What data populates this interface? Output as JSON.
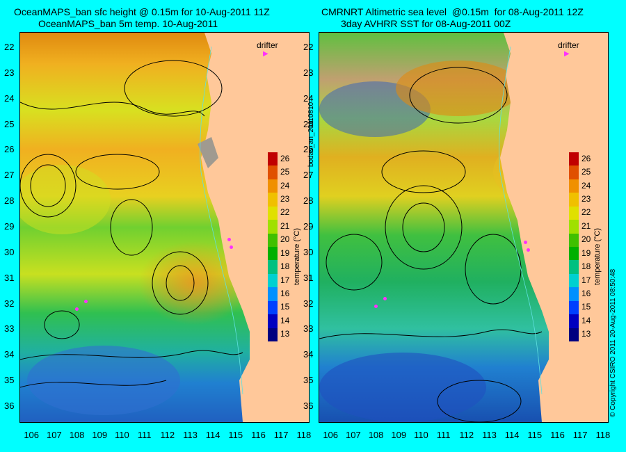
{
  "left": {
    "title1": "OceanMAPS_ban sfc height @ 0.15m for 10-Aug-2011 11Z",
    "title2": "OceanMAPS_ban 5m temp. 10-Aug-2011"
  },
  "right": {
    "title1": "CMRNRT Altimetric sea level  @0.15m  for 08-Aug-2011 12Z",
    "title2": "3day AVHRR SST for 08-Aug-2011 00Z"
  },
  "drifter_label": "drifter",
  "colorbar_label": "temperature (°C)",
  "side_left": "bodas_an_20110810",
  "side_right": "© Copyright CSIRO 2011   20-Aug-2011 08:50:48",
  "chart_data": [
    {
      "type": "heatmap",
      "title": "OceanMAPS_ban sfc height @ 0.15m for 10-Aug-2011 11Z",
      "subtitle": "OceanMAPS_ban 5m temp. 10-Aug-2011",
      "x_ticks": [
        "106",
        "107",
        "108",
        "109",
        "110",
        "111",
        "112",
        "113",
        "114",
        "115",
        "116",
        "117",
        "118"
      ],
      "y_ticks": [
        "22",
        "23",
        "24",
        "25",
        "26",
        "27",
        "28",
        "29",
        "30",
        "31",
        "32",
        "33",
        "34",
        "35",
        "36"
      ],
      "xlim": [
        105.5,
        118.2
      ],
      "ylim": [
        36.6,
        21.4
      ],
      "colorbar": {
        "label": "temperature (°C)",
        "ticks": [
          13,
          14,
          15,
          16,
          17,
          18,
          19,
          20,
          21,
          22,
          23,
          24,
          25,
          26
        ],
        "range": [
          12.5,
          26.5
        ]
      },
      "legend": [
        "drifter"
      ],
      "drifters": [
        {
          "x": 114.7,
          "y": 29.5
        },
        {
          "x": 114.8,
          "y": 29.8
        },
        {
          "x": 108.4,
          "y": 31.9
        },
        {
          "x": 108.0,
          "y": 32.2
        }
      ]
    },
    {
      "type": "heatmap",
      "title": "CMRNRT Altimetric sea level  @0.15m  for 08-Aug-2011 12Z",
      "subtitle": "3day AVHRR SST for 08-Aug-2011 00Z",
      "x_ticks": [
        "106",
        "107",
        "108",
        "109",
        "110",
        "111",
        "112",
        "113",
        "114",
        "115",
        "116",
        "117",
        "118"
      ],
      "y_ticks": [
        "22",
        "23",
        "24",
        "25",
        "26",
        "27",
        "28",
        "29",
        "30",
        "31",
        "32",
        "33",
        "34",
        "35",
        "36"
      ],
      "xlim": [
        105.5,
        118.2
      ],
      "ylim": [
        36.6,
        21.4
      ],
      "colorbar": {
        "label": "temperature (°C)",
        "ticks": [
          13,
          14,
          15,
          16,
          17,
          18,
          19,
          20,
          21,
          22,
          23,
          24,
          25,
          26
        ],
        "range": [
          12.5,
          26.5
        ]
      },
      "legend": [
        "drifter"
      ],
      "drifters": [
        {
          "x": 114.6,
          "y": 29.6
        },
        {
          "x": 114.7,
          "y": 29.9
        },
        {
          "x": 108.4,
          "y": 31.8
        },
        {
          "x": 108.0,
          "y": 32.1
        }
      ]
    }
  ]
}
